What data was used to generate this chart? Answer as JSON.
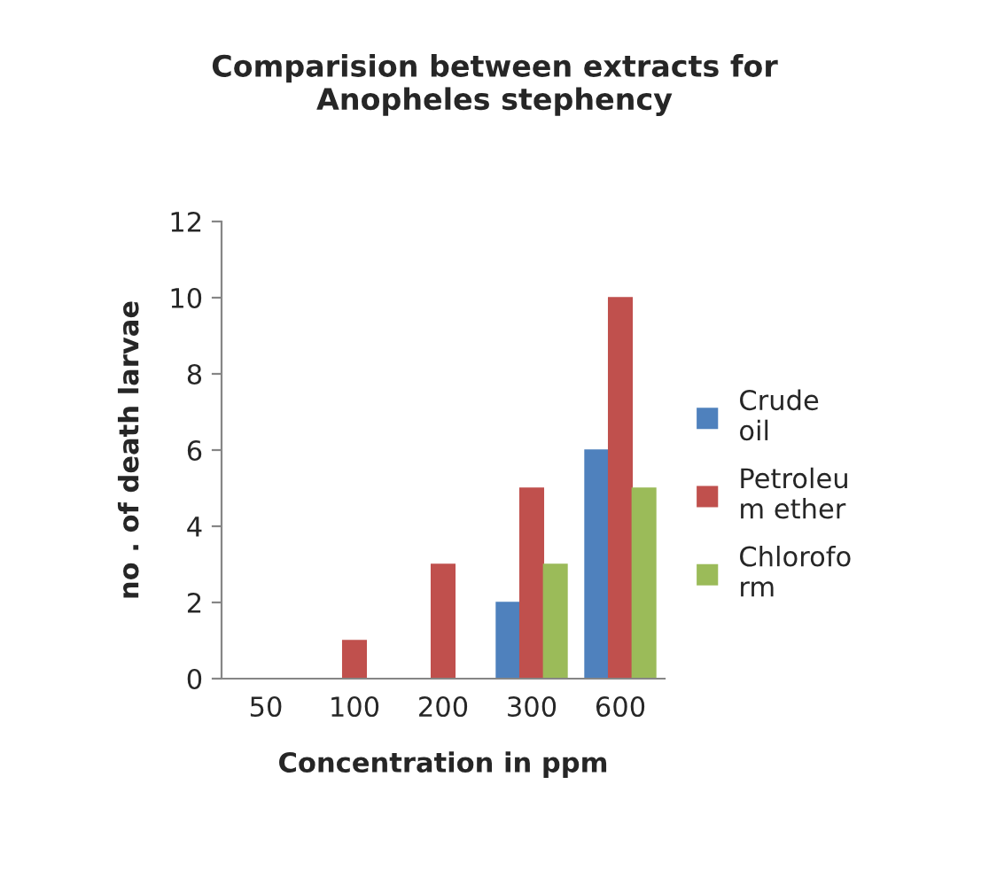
{
  "chart_data": {
    "type": "bar",
    "title": "Comparision between extracts for\nAnopheles stephency",
    "xlabel": "Concentration in ppm",
    "ylabel": "no . of death larvae",
    "categories": [
      "50",
      "100",
      "200",
      "300",
      "600"
    ],
    "series": [
      {
        "name": "Crude\noil",
        "color": "#4f81bd",
        "values": [
          0,
          0,
          0,
          2,
          6
        ]
      },
      {
        "name": "Petroleu\nm ether",
        "color": "#c0504d",
        "values": [
          0,
          1,
          3,
          5,
          10
        ]
      },
      {
        "name": "Chlorofo\nrm",
        "color": "#9bbb59",
        "values": [
          0,
          0,
          0,
          3,
          5
        ]
      }
    ],
    "ylim": [
      0,
      12
    ],
    "yticks": [
      0,
      2,
      4,
      6,
      8,
      10,
      12
    ],
    "grid": false,
    "legend": "right"
  }
}
